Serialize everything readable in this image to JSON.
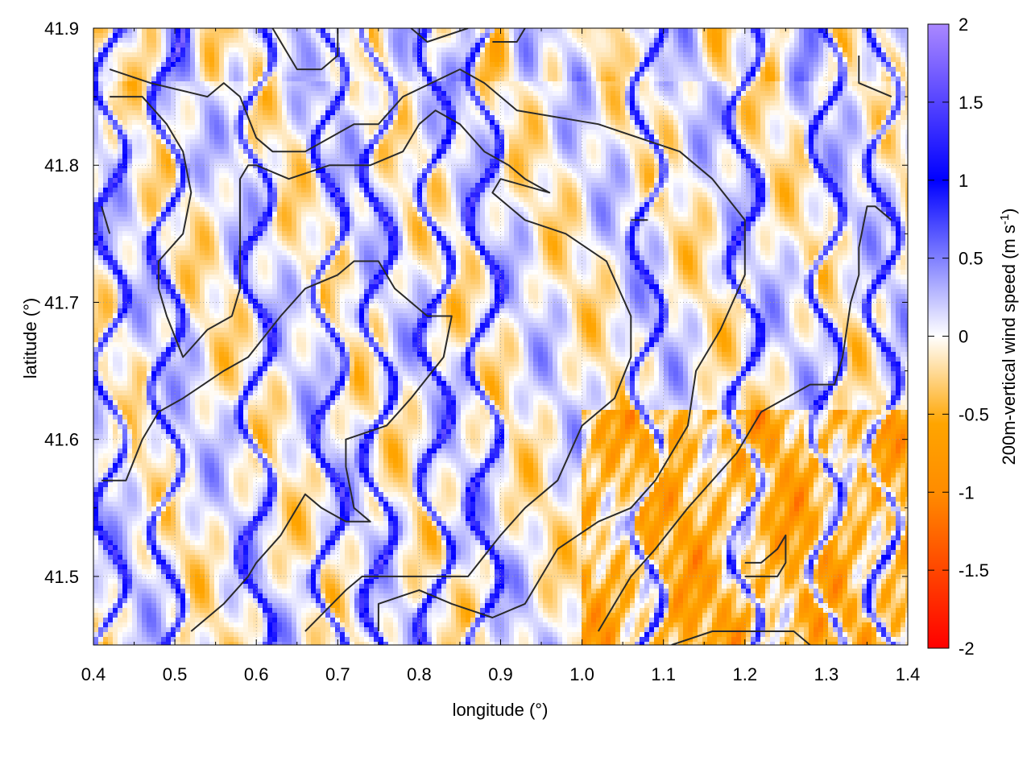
{
  "chart_data": {
    "type": "heatmap",
    "title": "",
    "xlabel": "longitude (°)",
    "ylabel": "latitude (°)",
    "xlim": [
      0.4,
      1.4
    ],
    "ylim": [
      41.45,
      41.9
    ],
    "x_ticks": [
      "0.4",
      "0.5",
      "0.6",
      "0.7",
      "0.8",
      "0.9",
      "1.0",
      "1.1",
      "1.2",
      "1.3",
      "1.4"
    ],
    "y_ticks": [
      "41.5",
      "41.6",
      "41.7",
      "41.8",
      "41.9"
    ],
    "grid": true,
    "colorbar": {
      "label_main": "200m-vertical wind speed (m s",
      "label_sup": "-1",
      "label_close": ")",
      "range": [
        -2,
        2
      ],
      "ticks": [
        "-2",
        "-1.5",
        "-1",
        "-0.5",
        "0",
        "0.5",
        "1",
        "1.5",
        "2"
      ],
      "colors": [
        "#ff0000",
        "#ff8c00",
        "#ffa500",
        "#ffffff",
        "#0000ff",
        "#aa88ff"
      ]
    },
    "features": {
      "updraft_bands_longitude": [
        0.42,
        0.49,
        0.6,
        0.69,
        0.75,
        0.82,
        0.88,
        1.08,
        1.2,
        1.3,
        1.37
      ],
      "contour_lines": [
        [
          [
            0.42,
            41.87
          ],
          [
            0.47,
            41.86
          ],
          [
            0.54,
            41.85
          ],
          [
            0.56,
            41.86
          ],
          [
            0.58,
            41.85
          ],
          [
            0.6,
            41.82
          ],
          [
            0.62,
            41.81
          ],
          [
            0.66,
            41.81
          ],
          [
            0.69,
            41.82
          ],
          [
            0.72,
            41.83
          ],
          [
            0.75,
            41.83
          ],
          [
            0.78,
            41.85
          ],
          [
            0.85,
            41.87
          ],
          [
            0.88,
            41.86
          ],
          [
            0.92,
            41.84
          ],
          [
            1.02,
            41.83
          ],
          [
            1.12,
            41.81
          ],
          [
            1.16,
            41.79
          ],
          [
            1.2,
            41.76
          ],
          [
            1.2,
            41.72
          ],
          [
            1.17,
            41.68
          ],
          [
            1.14,
            41.65
          ],
          [
            1.13,
            41.61
          ],
          [
            1.09,
            41.57
          ],
          [
            1.06,
            41.55
          ],
          [
            1.02,
            41.54
          ],
          [
            0.97,
            41.52
          ],
          [
            0.93,
            41.48
          ],
          [
            0.89,
            41.47
          ],
          [
            0.84,
            41.48
          ],
          [
            0.8,
            41.49
          ],
          [
            0.75,
            41.48
          ],
          [
            0.75,
            41.46
          ]
        ],
        [
          [
            0.42,
            41.85
          ],
          [
            0.46,
            41.85
          ],
          [
            0.49,
            41.83
          ],
          [
            0.51,
            41.81
          ],
          [
            0.52,
            41.78
          ],
          [
            0.51,
            41.75
          ],
          [
            0.48,
            41.73
          ],
          [
            0.48,
            41.71
          ],
          [
            0.49,
            41.69
          ],
          [
            0.51,
            41.66
          ],
          [
            0.54,
            41.68
          ],
          [
            0.57,
            41.69
          ],
          [
            0.58,
            41.71
          ],
          [
            0.58,
            41.75
          ],
          [
            0.58,
            41.77
          ],
          [
            0.58,
            41.79
          ],
          [
            0.59,
            41.8
          ],
          [
            0.6,
            41.8
          ],
          [
            0.64,
            41.79
          ],
          [
            0.69,
            41.8
          ],
          [
            0.74,
            41.8
          ],
          [
            0.78,
            41.81
          ],
          [
            0.8,
            41.83
          ],
          [
            0.82,
            41.84
          ],
          [
            0.85,
            41.83
          ],
          [
            0.88,
            41.81
          ],
          [
            0.91,
            41.8
          ],
          [
            0.93,
            41.79
          ],
          [
            0.96,
            41.78
          ],
          [
            0.9,
            41.79
          ],
          [
            0.89,
            41.78
          ],
          [
            0.93,
            41.76
          ],
          [
            0.98,
            41.75
          ],
          [
            1.03,
            41.73
          ],
          [
            1.06,
            41.69
          ],
          [
            1.06,
            41.66
          ],
          [
            1.04,
            41.63
          ],
          [
            1.0,
            41.61
          ],
          [
            0.97,
            41.57
          ],
          [
            0.93,
            41.55
          ],
          [
            0.9,
            41.53
          ],
          [
            0.86,
            41.5
          ],
          [
            0.81,
            41.5
          ],
          [
            0.73,
            41.5
          ],
          [
            0.71,
            41.49
          ],
          [
            0.66,
            41.46
          ]
        ],
        [
          [
            0.41,
            41.57
          ],
          [
            0.44,
            41.57
          ],
          [
            0.46,
            41.6
          ],
          [
            0.48,
            41.62
          ],
          [
            0.51,
            41.63
          ],
          [
            0.56,
            41.65
          ],
          [
            0.59,
            41.66
          ],
          [
            0.63,
            41.69
          ],
          [
            0.66,
            41.71
          ],
          [
            0.7,
            41.72
          ],
          [
            0.72,
            41.73
          ],
          [
            0.75,
            41.73
          ],
          [
            0.77,
            41.71
          ],
          [
            0.81,
            41.69
          ],
          [
            0.84,
            41.69
          ],
          [
            0.83,
            41.66
          ],
          [
            0.79,
            41.63
          ],
          [
            0.76,
            41.61
          ],
          [
            0.71,
            41.6
          ],
          [
            0.71,
            41.58
          ],
          [
            0.72,
            41.55
          ],
          [
            0.74,
            41.54
          ],
          [
            0.71,
            41.54
          ],
          [
            0.68,
            41.55
          ],
          [
            0.66,
            41.56
          ],
          [
            0.63,
            41.53
          ],
          [
            0.6,
            41.51
          ],
          [
            0.59,
            41.5
          ],
          [
            0.56,
            41.48
          ],
          [
            0.52,
            41.46
          ]
        ],
        [
          [
            1.02,
            41.46
          ],
          [
            1.04,
            41.48
          ],
          [
            1.06,
            41.5
          ],
          [
            1.09,
            41.52
          ],
          [
            1.13,
            41.55
          ],
          [
            1.16,
            41.57
          ],
          [
            1.19,
            41.59
          ],
          [
            1.22,
            41.62
          ],
          [
            1.25,
            41.63
          ],
          [
            1.28,
            41.64
          ],
          [
            1.31,
            41.64
          ],
          [
            1.32,
            41.66
          ],
          [
            1.33,
            41.7
          ],
          [
            1.34,
            41.72
          ],
          [
            1.34,
            41.74
          ],
          [
            1.35,
            41.77
          ],
          [
            1.36,
            41.77
          ],
          [
            1.38,
            41.76
          ]
        ],
        [
          [
            1.11,
            41.45
          ],
          [
            1.16,
            41.46
          ],
          [
            1.19,
            41.46
          ],
          [
            1.24,
            41.46
          ],
          [
            1.26,
            41.46
          ],
          [
            1.28,
            41.45
          ]
        ],
        [
          [
            1.2,
            41.5
          ],
          [
            1.24,
            41.5
          ],
          [
            1.25,
            41.51
          ],
          [
            1.25,
            41.53
          ],
          [
            1.24,
            41.52
          ],
          [
            1.22,
            41.51
          ],
          [
            1.2,
            41.51
          ]
        ],
        [
          [
            1.34,
            41.88
          ],
          [
            1.34,
            41.86
          ],
          [
            1.38,
            41.85
          ]
        ],
        [
          [
            1.06,
            41.76
          ],
          [
            1.08,
            41.76
          ],
          [
            1.07,
            41.76
          ],
          [
            1.06,
            41.76
          ]
        ],
        [
          [
            0.62,
            41.9
          ],
          [
            0.65,
            41.87
          ],
          [
            0.68,
            41.87
          ],
          [
            0.7,
            41.88
          ],
          [
            0.7,
            41.9
          ]
        ],
        [
          [
            0.79,
            41.9
          ],
          [
            0.81,
            41.89
          ],
          [
            0.86,
            41.9
          ]
        ],
        [
          [
            0.89,
            41.89
          ],
          [
            0.92,
            41.89
          ],
          [
            0.93,
            41.9
          ]
        ],
        [
          [
            0.41,
            41.77
          ],
          [
            0.42,
            41.75
          ]
        ]
      ]
    }
  }
}
